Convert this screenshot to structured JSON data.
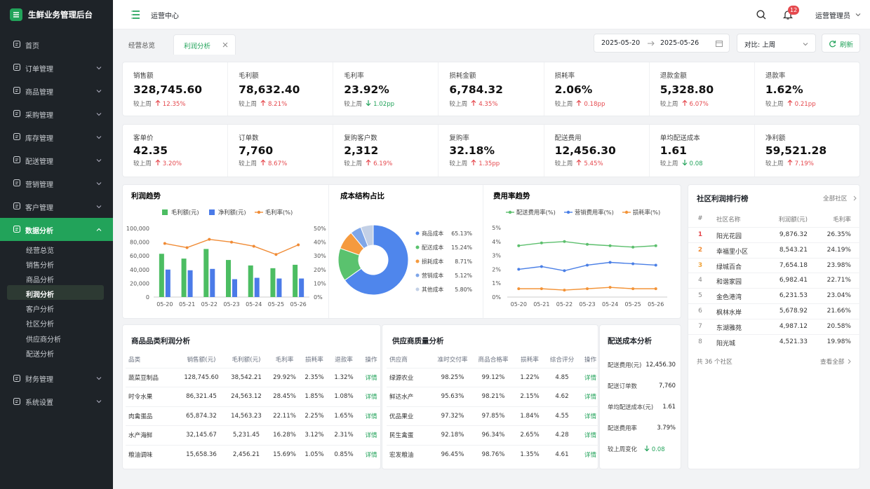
{
  "sidebar": {
    "title": "生鲜业务管理后台",
    "menu": [
      {
        "label": "首页"
      },
      {
        "label": "订单管理"
      },
      {
        "label": "商品管理"
      },
      {
        "label": "采购管理"
      },
      {
        "label": "库存管理"
      },
      {
        "label": "配送管理"
      },
      {
        "label": "营销管理"
      },
      {
        "label": "客户管理"
      },
      {
        "label": "数据分析",
        "active": true,
        "children": [
          {
            "label": "经营总览"
          },
          {
            "label": "销售分析"
          },
          {
            "label": "商品分析"
          },
          {
            "label": "利润分析",
            "active": true
          },
          {
            "label": "客户分析"
          },
          {
            "label": "社区分析"
          },
          {
            "label": "供应商分析"
          },
          {
            "label": "配送分析"
          }
        ]
      },
      {
        "label": "财务管理"
      },
      {
        "label": "系统设置"
      }
    ]
  },
  "header": {
    "title": "运营中心",
    "notifications": 12,
    "user": "运营管理员"
  },
  "tabs": [
    {
      "label": "经营总览"
    },
    {
      "label": "利润分析",
      "active": true
    }
  ],
  "filters": {
    "start": "2025-05-20",
    "end": "2025-05-26",
    "compare": "对比: 上周",
    "refresh": "刷新"
  },
  "kpis": [
    [
      {
        "label": "销售额",
        "value": "328,745.60",
        "compare": "较上周",
        "trend": "up",
        "change": "12.35%"
      },
      {
        "label": "毛利额",
        "value": "78,632.40",
        "compare": "较上周",
        "trend": "up",
        "change": "8.21%"
      },
      {
        "label": "毛利率",
        "value": "23.92%",
        "compare": "较上周",
        "trend": "down",
        "change": "1.02pp"
      },
      {
        "label": "损耗金额",
        "value": "6,784.32",
        "compare": "较上周",
        "trend": "up",
        "change": "4.35%"
      },
      {
        "label": "损耗率",
        "value": "2.06%",
        "compare": "较上周",
        "trend": "up",
        "change": "0.18pp"
      },
      {
        "label": "退款金额",
        "value": "5,328.80",
        "compare": "较上周",
        "trend": "up",
        "change": "6.07%"
      },
      {
        "label": "退款率",
        "value": "1.62%",
        "compare": "较上周",
        "trend": "up",
        "change": "0.21pp"
      }
    ],
    [
      {
        "label": "客单价",
        "value": "42.35",
        "compare": "较上周",
        "trend": "up",
        "change": "3.20%"
      },
      {
        "label": "订单数",
        "value": "7,760",
        "compare": "较上周",
        "trend": "up",
        "change": "8.67%"
      },
      {
        "label": "复购客户数",
        "value": "2,312",
        "compare": "较上周",
        "trend": "up",
        "change": "6.19%"
      },
      {
        "label": "复购率",
        "value": "32.18%",
        "compare": "较上周",
        "trend": "up",
        "change": "1.35pp"
      },
      {
        "label": "配送费用",
        "value": "12,456.30",
        "compare": "较上周",
        "trend": "up",
        "change": "5.45%"
      },
      {
        "label": "单均配送成本",
        "value": "1.61",
        "compare": "较上周",
        "trend": "down",
        "change": "0.08"
      },
      {
        "label": "净利额",
        "value": "59,521.28",
        "compare": "较上周",
        "trend": "up",
        "change": "7.19%"
      }
    ]
  ],
  "chart_data": [
    {
      "type": "combo",
      "title": "利润趋势",
      "categories": [
        "05-20",
        "05-21",
        "05-22",
        "05-23",
        "05-24",
        "05-25",
        "05-26"
      ],
      "series": [
        {
          "name": "毛利额(元)",
          "type": "bar",
          "color": "#4cbd62",
          "values": [
            63000,
            56000,
            70000,
            54000,
            46000,
            42000,
            47000
          ]
        },
        {
          "name": "净利额(元)",
          "type": "bar",
          "color": "#4b7be8",
          "values": [
            40000,
            39000,
            41000,
            26000,
            28000,
            27000,
            27000
          ]
        },
        {
          "name": "毛利率(%)",
          "type": "line",
          "axis": "y2",
          "color": "#f08b35",
          "values": [
            39,
            36,
            42,
            40,
            37,
            31,
            38
          ]
        }
      ],
      "ylim": [
        0,
        100000
      ],
      "yticks": [
        0,
        {
          "value": 20000,
          "label": "20,000"
        },
        {
          "value": 40000,
          "label": "40,000"
        },
        {
          "value": 60000,
          "label": "60,000"
        },
        {
          "value": 80000,
          "label": "80,000"
        },
        {
          "value": 100000,
          "label": "100,000"
        }
      ],
      "y2lim": [
        0,
        50
      ],
      "y2ticks": [
        {
          "value": 0,
          "label": "0%"
        },
        {
          "value": 10,
          "label": "10%"
        },
        {
          "value": 20,
          "label": "20%"
        },
        {
          "value": 30,
          "label": "30%"
        },
        {
          "value": 40,
          "label": "40%"
        },
        {
          "value": 50,
          "label": "50%"
        }
      ],
      "grid": false
    },
    {
      "type": "pie",
      "title": "成本结构占比",
      "categories": [
        "商品成本",
        "配送成本",
        "损耗成本",
        "营销成本",
        "其他成本"
      ],
      "values": [
        65.13,
        15.24,
        8.71,
        5.12,
        5.8
      ],
      "value_labels": [
        "65.13%",
        "15.24%",
        "8.71%",
        "5.12%",
        "5.80%"
      ],
      "colors": [
        "#4f86ec",
        "#5ac26e",
        "#f59a3e",
        "#7fa6e8",
        "#c3d0e6"
      ]
    },
    {
      "type": "line",
      "title": "费用率趋势",
      "categories": [
        "05-20",
        "05-21",
        "05-22",
        "05-23",
        "05-24",
        "05-25",
        "05-26"
      ],
      "series": [
        {
          "name": "配送费用率(%)",
          "color": "#5cbf6d",
          "values": [
            3.7,
            3.9,
            4.0,
            3.8,
            3.7,
            3.6,
            3.7
          ]
        },
        {
          "name": "营销费用率(%)",
          "color": "#4a7fe6",
          "values": [
            2.0,
            2.2,
            1.9,
            2.3,
            2.5,
            2.4,
            2.3
          ]
        },
        {
          "name": "损耗率(%)",
          "color": "#f39337",
          "values": [
            0.6,
            0.6,
            0.5,
            0.6,
            0.7,
            0.6,
            0.6
          ]
        }
      ],
      "ylim": [
        0,
        5
      ],
      "yticks": [
        {
          "value": 0,
          "label": "0%"
        },
        {
          "value": 1,
          "label": "1%"
        },
        {
          "value": 2,
          "label": "2%"
        },
        {
          "value": 3,
          "label": "3%"
        },
        {
          "value": 4,
          "label": "4%"
        },
        {
          "value": 5,
          "label": "5%"
        }
      ],
      "grid": false
    }
  ],
  "ranking": {
    "title": "社区利润排行榜",
    "filter": "全部社区",
    "columns": [
      "#",
      "社区名称",
      "利润额(元)",
      "毛利率"
    ],
    "rows": [
      [
        "1",
        "阳光花园",
        "9,876.32",
        "26.35%"
      ],
      [
        "2",
        "幸福里小区",
        "8,543.21",
        "24.19%"
      ],
      [
        "3",
        "绿城百合",
        "7,654.18",
        "23.98%"
      ],
      [
        "4",
        "和谐家园",
        "6,982.41",
        "22.71%"
      ],
      [
        "5",
        "金色港湾",
        "6,231.53",
        "23.04%"
      ],
      [
        "6",
        "枫林水岸",
        "5,678.92",
        "21.66%"
      ],
      [
        "7",
        "东湖雅苑",
        "4,987.12",
        "20.58%"
      ],
      [
        "8",
        "阳光城",
        "4,521.33",
        "19.98%"
      ]
    ],
    "footer": "共 36 个社区",
    "link": "查看全部"
  },
  "category_table": {
    "title": "商品品类利润分析",
    "columns": [
      "品类",
      "销售额(元)",
      "毛利额(元)",
      "毛利率",
      "损耗率",
      "退款率",
      "操作"
    ],
    "rows": [
      [
        "蔬菜豆制品",
        "128,745.60",
        "38,542.21",
        "29.92%",
        "2.35%",
        "1.32%",
        "详情"
      ],
      [
        "时令水果",
        "86,321.45",
        "24,563.12",
        "28.45%",
        "1.85%",
        "1.08%",
        "详情"
      ],
      [
        "肉禽蛋品",
        "65,874.32",
        "14,563.23",
        "22.11%",
        "2.25%",
        "1.65%",
        "详情"
      ],
      [
        "水产海鲜",
        "32,145.67",
        "5,231.45",
        "16.28%",
        "3.12%",
        "2.31%",
        "详情"
      ],
      [
        "粮油调味",
        "15,658.36",
        "2,456.21",
        "15.69%",
        "1.05%",
        "0.85%",
        "详情"
      ]
    ]
  },
  "supplier_table": {
    "title": "供应商质量分析",
    "columns": [
      "供应商",
      "准时交付率",
      "商品合格率",
      "损耗率",
      "综合评分",
      "操作"
    ],
    "rows": [
      [
        "绿源农业",
        "98.25%",
        "99.12%",
        "1.22%",
        "4.85",
        "详情"
      ],
      [
        "鲜达水产",
        "95.63%",
        "98.21%",
        "2.15%",
        "4.62",
        "详情"
      ],
      [
        "优品果业",
        "97.32%",
        "97.85%",
        "1.84%",
        "4.55",
        "详情"
      ],
      [
        "民生禽蛋",
        "92.18%",
        "96.34%",
        "2.65%",
        "4.28",
        "详情"
      ],
      [
        "宏发粮油",
        "96.45%",
        "98.76%",
        "1.35%",
        "4.61",
        "详情"
      ]
    ]
  },
  "delivery": {
    "title": "配送成本分析",
    "items": [
      {
        "label": "配送费用(元)",
        "value": "12,456.30"
      },
      {
        "label": "配送订单数",
        "value": "7,760"
      },
      {
        "label": "单均配送成本(元)",
        "value": "1.61"
      },
      {
        "label": "配送费用率",
        "value": "3.79%"
      }
    ],
    "change_label": "较上周变化",
    "trend": "down",
    "change": "0.08"
  }
}
